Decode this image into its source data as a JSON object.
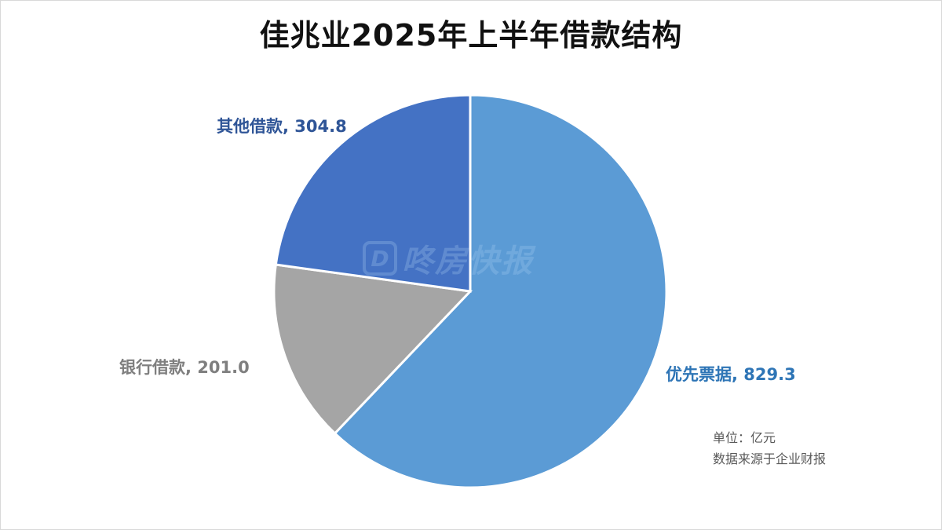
{
  "chart_data": {
    "type": "pie",
    "title": "佳兆业2025年上半年借款结构",
    "slices": [
      {
        "name": "优先票据",
        "value": 829.3,
        "color": "#5b9bd5",
        "label": "优先票据, 829.3",
        "label_color": "#2e75b6"
      },
      {
        "name": "银行借款",
        "value": 201.0,
        "color": "#a5a5a5",
        "label": "银行借款, 201.0",
        "label_color": "#7f7f7f"
      },
      {
        "name": "其他借款",
        "value": 304.8,
        "color": "#4472c4",
        "label": "其他借款, 304.8",
        "label_color": "#2f5597"
      }
    ]
  },
  "watermark": {
    "logo": "D",
    "text": "咚房快报"
  },
  "notes": {
    "unit": "单位：亿元",
    "source": "数据来源于企业财报"
  }
}
